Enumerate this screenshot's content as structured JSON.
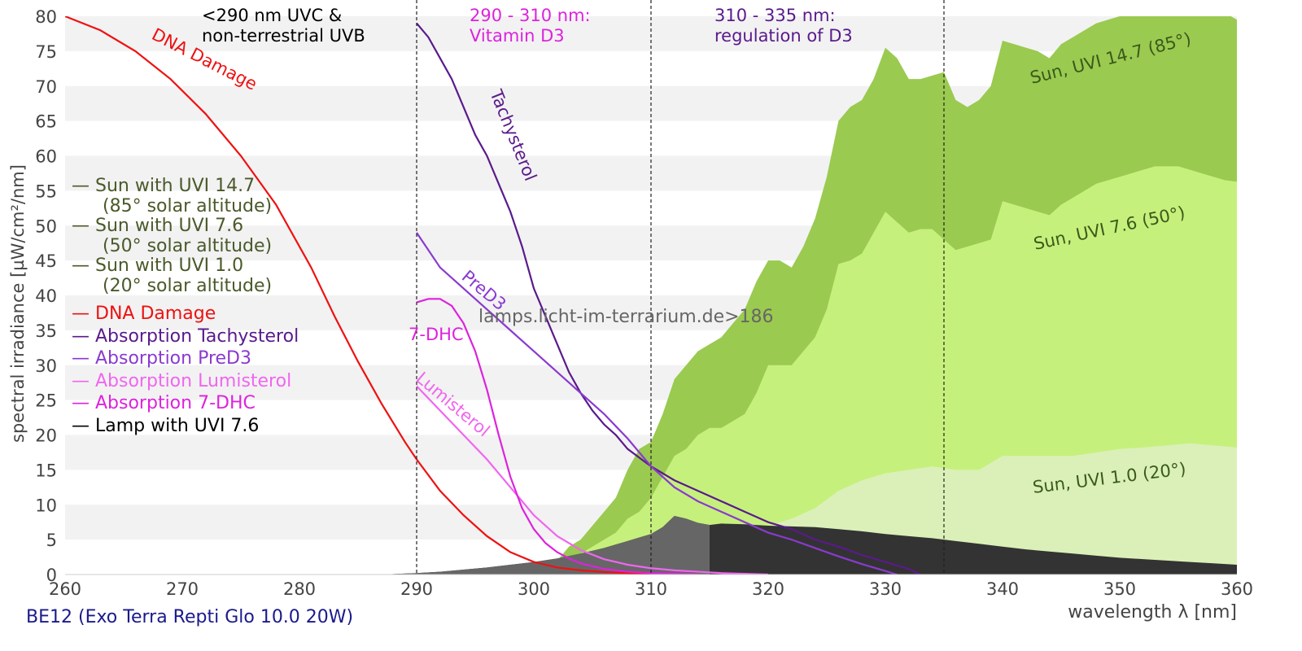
{
  "chart_data": {
    "type": "area",
    "xlabel": "wavelength λ [nm]",
    "ylabel": "spectral irradiance [µW/cm²/nm]",
    "xlim": [
      260,
      360
    ],
    "ylim": [
      0,
      80
    ],
    "xticks": [
      260,
      270,
      280,
      290,
      300,
      310,
      320,
      330,
      340,
      350,
      360
    ],
    "yticks": [
      0,
      5,
      10,
      15,
      20,
      25,
      30,
      35,
      40,
      45,
      50,
      55,
      60,
      65,
      70,
      75,
      80
    ],
    "grid": "horizontal alternating bands",
    "vlines": [
      290,
      310,
      335
    ],
    "regions": [
      {
        "lines": [
          "<290 nm UVC &",
          "non-terrestrial UVB"
        ],
        "color": "#000000"
      },
      {
        "lines": [
          "290 - 310 nm:",
          "Vitamin D3"
        ],
        "color": "#dd22dd"
      },
      {
        "lines": [
          "310 - 335 nm:",
          "regulation of D3"
        ],
        "color": "#5a1a8c"
      }
    ],
    "areas": [
      {
        "key": "sun147",
        "label": "Sun, UVI 14.7 (85°)",
        "color": "#9aca50",
        "x": [
          300,
          302,
          303,
          304,
          305,
          306,
          307,
          308,
          309,
          310,
          311,
          312,
          313,
          314,
          315,
          316,
          317,
          318,
          319,
          320,
          321,
          322,
          323,
          324,
          325,
          326,
          327,
          328,
          329,
          330,
          331,
          332,
          333,
          334,
          335,
          336,
          337,
          338,
          339,
          340,
          341,
          342,
          343,
          344,
          345,
          346,
          347,
          348,
          349,
          350,
          351,
          352,
          353,
          354,
          355,
          356,
          357,
          358,
          359,
          360
        ],
        "y": [
          0,
          2,
          4,
          5,
          7,
          9,
          11,
          15,
          18,
          19,
          23,
          28,
          30,
          32,
          33,
          34,
          36,
          38,
          42,
          45,
          45,
          44,
          47,
          51,
          57,
          65,
          67,
          68,
          71,
          75.5,
          74,
          71,
          71,
          71.5,
          72,
          68,
          67,
          68,
          70,
          76.5,
          76,
          75.5,
          75,
          74,
          76,
          77,
          78,
          79,
          79.5,
          80,
          80.5,
          81,
          82,
          83,
          84,
          83,
          82,
          81,
          80.5,
          79.5
        ]
      },
      {
        "key": "sun76",
        "label": "Sun, UVI 7.6 (50°)",
        "color": "#c6f07c",
        "x": [
          300,
          302,
          303,
          304,
          305,
          306,
          307,
          308,
          309,
          310,
          311,
          312,
          313,
          314,
          315,
          316,
          317,
          318,
          319,
          320,
          321,
          322,
          323,
          324,
          325,
          326,
          327,
          328,
          329,
          330,
          331,
          332,
          333,
          334,
          335,
          336,
          337,
          338,
          339,
          340,
          341,
          342,
          343,
          344,
          345,
          346,
          347,
          348,
          349,
          350,
          351,
          352,
          353,
          354,
          355,
          356,
          357,
          358,
          359,
          360
        ],
        "y": [
          0,
          1,
          2,
          3,
          4,
          5,
          6,
          8,
          9,
          11,
          14,
          17,
          18,
          20,
          21,
          21,
          22,
          23,
          26,
          30,
          30,
          30,
          32,
          34,
          38,
          44.5,
          45,
          46,
          49,
          52,
          50.5,
          49,
          49.5,
          49.5,
          48,
          46.5,
          47,
          47.5,
          48,
          53.5,
          53,
          52.5,
          52,
          51.5,
          53,
          54,
          55,
          56,
          56.5,
          57,
          57.5,
          58,
          58.5,
          58.5,
          58.5,
          58,
          57.5,
          57,
          56.5,
          56.3
        ]
      },
      {
        "key": "sun10",
        "label": "Sun, UVI 1.0 (20°)",
        "color": "#daf0b8",
        "x": [
          300,
          303,
          305,
          308,
          310,
          312,
          314,
          316,
          318,
          320,
          322,
          324,
          326,
          328,
          330,
          332,
          334,
          336,
          338,
          340,
          342,
          344,
          346,
          348,
          350,
          352,
          354,
          356,
          358,
          360
        ],
        "y": [
          0,
          0.5,
          1,
          2,
          2.5,
          3,
          4,
          5,
          6,
          7,
          8,
          9.5,
          12,
          13.5,
          14.5,
          15,
          15.5,
          15,
          15,
          17,
          17,
          17,
          17,
          17.5,
          18,
          18.2,
          18.5,
          18.8,
          18.5,
          18.2
        ]
      },
      {
        "key": "lamp",
        "label": "Lamp with UVI 7.6",
        "color": "#000000",
        "x": [
          287,
          290,
          292,
          294,
          296,
          298,
          300,
          302,
          304,
          306,
          308,
          309,
          310,
          311,
          312,
          313,
          314,
          315,
          316,
          318,
          320,
          322,
          324,
          326,
          328,
          330,
          332,
          334,
          336,
          338,
          340,
          342,
          344,
          346,
          348,
          350,
          352,
          354,
          356,
          358,
          360
        ],
        "y": [
          0,
          0.2,
          0.4,
          0.7,
          1.0,
          1.4,
          1.8,
          2.3,
          3.0,
          3.8,
          4.8,
          5.3,
          5.8,
          6.8,
          8.4,
          8,
          7.4,
          7.1,
          7.3,
          7.2,
          7.0,
          6.9,
          6.8,
          6.5,
          6.2,
          5.8,
          5.5,
          5.2,
          4.8,
          4.4,
          4.0,
          3.6,
          3.3,
          3.0,
          2.7,
          2.4,
          2.2,
          2.0,
          1.8,
          1.6,
          1.4
        ]
      }
    ],
    "lines": [
      {
        "key": "dna",
        "label": "DNA Damage",
        "color": "#ee1111",
        "x": [
          260,
          263,
          266,
          269,
          272,
          275,
          278,
          281,
          283,
          285,
          287,
          289,
          290,
          292,
          294,
          296,
          298,
          300,
          302,
          304,
          306,
          308,
          310,
          312,
          314
        ],
        "y": [
          80,
          78,
          75,
          71,
          66,
          60,
          53,
          44,
          37,
          30.5,
          24.5,
          19,
          16.5,
          12,
          8.5,
          5.5,
          3.2,
          1.8,
          1.0,
          0.6,
          0.35,
          0.2,
          0.1,
          0.05,
          0
        ]
      },
      {
        "key": "tachy",
        "label": "Absorption Tachysterol",
        "color": "#5a1a8c",
        "x": [
          290,
          291,
          292,
          293,
          294,
          295,
          296,
          297,
          298,
          299,
          300,
          301,
          302,
          303,
          304,
          305,
          306,
          307,
          308,
          310,
          312,
          314,
          316,
          318,
          320,
          322,
          324,
          326,
          328,
          330,
          332,
          333
        ],
        "y": [
          79,
          77,
          74,
          71,
          67,
          63,
          60,
          56,
          52,
          47,
          41,
          37,
          33,
          29,
          26,
          23.5,
          21.5,
          20,
          18,
          15.5,
          13.5,
          12,
          10.5,
          9,
          7.5,
          6.5,
          5,
          4,
          2.8,
          1.8,
          0.8,
          0
        ]
      },
      {
        "key": "pred3",
        "label": "Absorption PreD3",
        "color": "#8a3ad0",
        "x": [
          290,
          292,
          294,
          296,
          298,
          300,
          302,
          304,
          306,
          308,
          310,
          312,
          314,
          316,
          318,
          320,
          322,
          324,
          326,
          328,
          330,
          331
        ],
        "y": [
          49,
          44,
          41,
          38,
          35,
          32,
          29,
          26,
          23,
          19.5,
          15.5,
          12.5,
          10.5,
          9,
          7.5,
          6,
          5,
          3.8,
          2.6,
          1.5,
          0.5,
          0
        ]
      },
      {
        "key": "lumi",
        "label": "Absorption Lumisterol",
        "color": "#f066f0",
        "x": [
          290,
          292,
          294,
          296,
          298,
          300,
          302,
          304,
          306,
          308,
          310,
          312,
          314,
          316,
          318,
          320
        ],
        "y": [
          27,
          23.5,
          20,
          16.5,
          12.5,
          8.5,
          5.5,
          3.5,
          2.2,
          1.4,
          0.9,
          0.6,
          0.4,
          0.2,
          0.1,
          0
        ]
      },
      {
        "key": "dhc",
        "label": "Absorption 7-DHC",
        "color": "#dd22dd",
        "x": [
          290,
          291,
          292,
          293,
          294,
          295,
          296,
          297,
          298,
          299,
          300,
          301,
          302,
          303,
          304,
          306,
          308,
          310,
          312,
          314
        ],
        "y": [
          39,
          39.5,
          39.5,
          38.5,
          36,
          32,
          26.5,
          20,
          14,
          9.5,
          6.5,
          4.5,
          3.2,
          2.3,
          1.6,
          0.8,
          0.4,
          0.2,
          0.1,
          0
        ]
      }
    ],
    "curve_labels": [
      {
        "key": "dna",
        "text": "DNA Damage",
        "color": "#ee1111"
      },
      {
        "key": "tachy",
        "text": "Tachysterol",
        "color": "#5a1a8c"
      },
      {
        "key": "pred3",
        "text": "PreD3",
        "color": "#8a3ad0"
      },
      {
        "key": "dhc",
        "text": "7-DHC",
        "color": "#dd22dd"
      },
      {
        "key": "lumi",
        "text": "Lumisterol",
        "color": "#f066f0"
      },
      {
        "key": "sun147",
        "text": "Sun, UVI 14.7 (85°)",
        "color": "#3a5a1a"
      },
      {
        "key": "sun76",
        "text": "Sun, UVI 7.6 (50°)",
        "color": "#3a5a1a"
      },
      {
        "key": "sun10",
        "text": "Sun, UVI 1.0 (20°)",
        "color": "#3a5a1a"
      }
    ]
  },
  "legend": [
    {
      "marker": "—",
      "text": "Sun with UVI 14.7",
      "sub": "(85° solar altitude)",
      "color": "#4a5a2a"
    },
    {
      "marker": "—",
      "text": "Sun with UVI 7.6",
      "sub": "(50° solar altitude)",
      "color": "#4a5a2a"
    },
    {
      "marker": "—",
      "text": "Sun with UVI 1.0",
      "sub": "(20° solar altitude)",
      "color": "#4a5a2a"
    },
    {
      "marker": "—",
      "text": "DNA Damage",
      "color": "#ee1111"
    },
    {
      "marker": "—",
      "text": "Absorption Tachysterol",
      "color": "#5a1a8c"
    },
    {
      "marker": "—",
      "text": "Absorption PreD3",
      "color": "#8a3ad0"
    },
    {
      "marker": "—",
      "text": "Absorption Lumisterol",
      "color": "#f066f0"
    },
    {
      "marker": "—",
      "text": "Absorption 7-DHC",
      "color": "#dd22dd"
    },
    {
      "marker": "—",
      "text": "Lamp with UVI 7.6",
      "color": "#000000"
    }
  ],
  "watermark": "lamps.licht-im-terrarium.de>186",
  "caption": "BE12 (Exo Terra Repti Glo 10.0 20W)",
  "colors": {
    "band": "#f2f2f2",
    "axis_text": "#444444",
    "caption": "#1a1a8c"
  }
}
